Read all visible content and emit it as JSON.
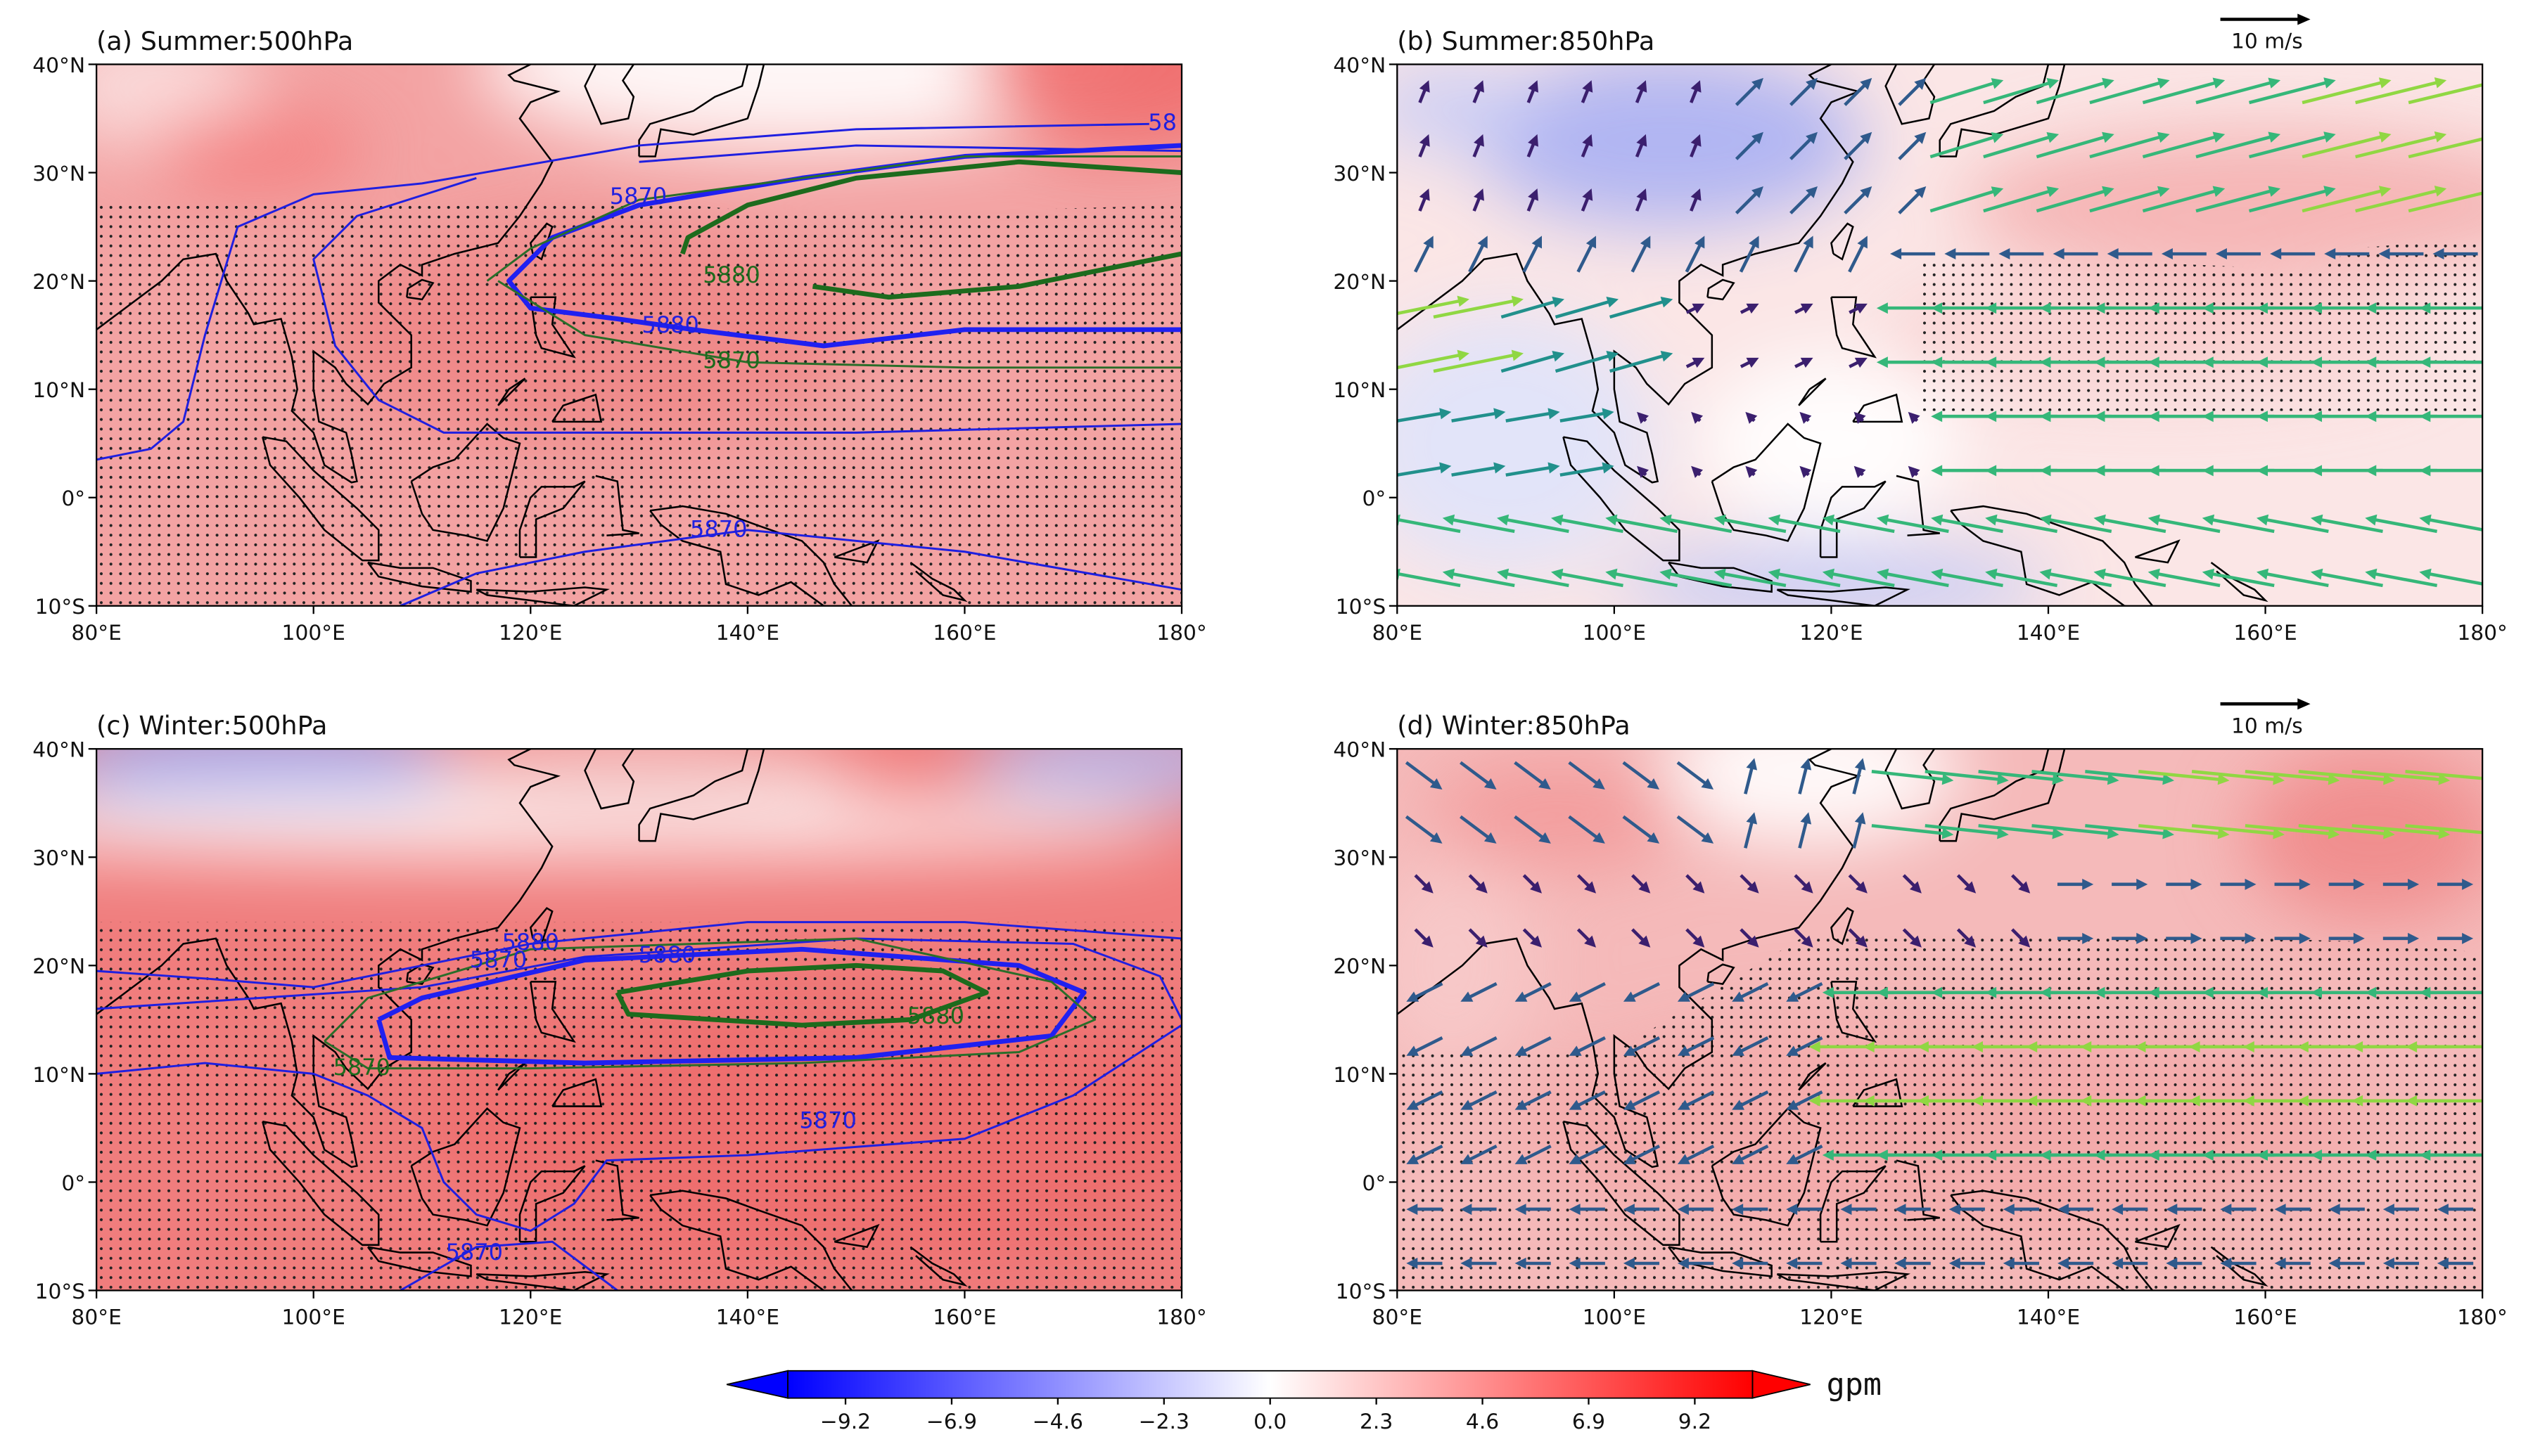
{
  "figure": {
    "panels": [
      {
        "title": "(a) Summer:500hPa",
        "xlim": [
          80,
          180
        ],
        "ylim": [
          -10,
          40
        ],
        "xticks": [
          {
            "value": 80,
            "label": "80°E"
          },
          {
            "value": 100,
            "label": "100°E"
          },
          {
            "value": 120,
            "label": "120°E"
          },
          {
            "value": 140,
            "label": "140°E"
          },
          {
            "value": 160,
            "label": "160°E"
          },
          {
            "value": 180,
            "label": "180°"
          }
        ],
        "yticks": [
          {
            "value": -10,
            "label": "10°S"
          },
          {
            "value": 0,
            "label": "0°"
          },
          {
            "value": 10,
            "label": "10°N"
          },
          {
            "value": 20,
            "label": "20°N"
          },
          {
            "value": 30,
            "label": "30°N"
          },
          {
            "value": 40,
            "label": "40°N"
          }
        ],
        "contour_labels": [
          "5870",
          "5880",
          "5880",
          "5870",
          "5870",
          "58"
        ]
      },
      {
        "title": "(b) Summer:850hPa",
        "xlim": [
          80,
          180
        ],
        "ylim": [
          -10,
          40
        ],
        "xticks": [
          {
            "value": 80,
            "label": "80°E"
          },
          {
            "value": 100,
            "label": "100°E"
          },
          {
            "value": 120,
            "label": "120°E"
          },
          {
            "value": 140,
            "label": "140°E"
          },
          {
            "value": 160,
            "label": "160°E"
          },
          {
            "value": 180,
            "label": "180°"
          }
        ],
        "yticks": [
          {
            "value": -10,
            "label": "10°S"
          },
          {
            "value": 0,
            "label": "0°"
          },
          {
            "value": 10,
            "label": "10°N"
          },
          {
            "value": 20,
            "label": "20°N"
          },
          {
            "value": 30,
            "label": "30°N"
          },
          {
            "value": 40,
            "label": "40°N"
          }
        ],
        "reference_vector": "10 m/s"
      },
      {
        "title": "(c) Winter:500hPa",
        "xlim": [
          80,
          180
        ],
        "ylim": [
          -10,
          40
        ],
        "xticks": [
          {
            "value": 80,
            "label": "80°E"
          },
          {
            "value": 100,
            "label": "100°E"
          },
          {
            "value": 120,
            "label": "120°E"
          },
          {
            "value": 140,
            "label": "140°E"
          },
          {
            "value": 160,
            "label": "160°E"
          },
          {
            "value": 180,
            "label": "180°"
          }
        ],
        "yticks": [
          {
            "value": -10,
            "label": "10°S"
          },
          {
            "value": 0,
            "label": "0°"
          },
          {
            "value": 10,
            "label": "10°N"
          },
          {
            "value": 20,
            "label": "20°N"
          },
          {
            "value": 30,
            "label": "30°N"
          },
          {
            "value": 40,
            "label": "40°N"
          }
        ],
        "contour_labels": [
          "5880",
          "5870",
          "5880",
          "5880",
          "5870",
          "5870",
          "5870"
        ]
      },
      {
        "title": "(d) Winter:850hPa",
        "xlim": [
          80,
          180
        ],
        "ylim": [
          -10,
          40
        ],
        "xticks": [
          {
            "value": 80,
            "label": "80°E"
          },
          {
            "value": 100,
            "label": "100°E"
          },
          {
            "value": 120,
            "label": "120°E"
          },
          {
            "value": 140,
            "label": "140°E"
          },
          {
            "value": 160,
            "label": "160°E"
          },
          {
            "value": 180,
            "label": "180°"
          }
        ],
        "yticks": [
          {
            "value": -10,
            "label": "10°S"
          },
          {
            "value": 0,
            "label": "0°"
          },
          {
            "value": 10,
            "label": "10°N"
          },
          {
            "value": 20,
            "label": "20°N"
          },
          {
            "value": 30,
            "label": "30°N"
          },
          {
            "value": 40,
            "label": "40°N"
          }
        ],
        "reference_vector": "10 m/s"
      }
    ],
    "colorbar": {
      "clim": [
        -10.45,
        10.45
      ],
      "ticks": [
        {
          "value": -9.2,
          "label": "−9.2"
        },
        {
          "value": -6.9,
          "label": "−6.9"
        },
        {
          "value": -4.6,
          "label": "−4.6"
        },
        {
          "value": -2.3,
          "label": "−2.3"
        },
        {
          "value": 0,
          "label": "0.0"
        },
        {
          "value": 2.3,
          "label": "2.3"
        },
        {
          "value": 4.6,
          "label": "4.6"
        },
        {
          "value": 6.9,
          "label": "6.9"
        },
        {
          "value": 9.2,
          "label": "9.2"
        }
      ],
      "unit": "gpm"
    }
  }
}
